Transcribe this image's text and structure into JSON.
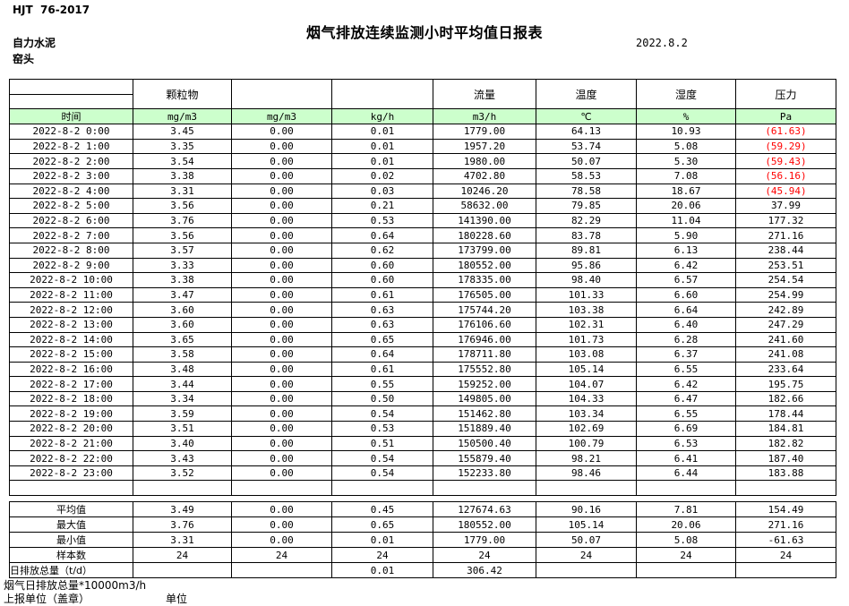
{
  "page": {
    "doc_code": "HJT  76-2017",
    "title": "烟气排放连续监测小时平均值日报表",
    "date": "2022.8.2",
    "company": "自力水泥",
    "location": "窑头"
  },
  "table": {
    "group_headers": [
      "",
      "颗粒物",
      "",
      "",
      "流量",
      "温度",
      "湿度",
      "压力"
    ],
    "unit_headers": [
      "时间",
      "mg/m3",
      "mg/m3",
      "kg/h",
      "m3/h",
      "℃",
      "%",
      "Pa"
    ],
    "rows": [
      {
        "cells": [
          "2022-8-2 0:00",
          "3.45",
          "0.00",
          "0.01",
          "1779.00",
          "64.13",
          "10.93",
          "(61.63)"
        ]
      },
      {
        "cells": [
          "2022-8-2 1:00",
          "3.35",
          "0.00",
          "0.01",
          "1957.20",
          "53.74",
          "5.08",
          "(59.29)"
        ]
      },
      {
        "cells": [
          "2022-8-2 2:00",
          "3.54",
          "0.00",
          "0.01",
          "1980.00",
          "50.07",
          "5.30",
          "(59.43)"
        ]
      },
      {
        "cells": [
          "2022-8-2 3:00",
          "3.38",
          "0.00",
          "0.02",
          "4702.80",
          "58.53",
          "7.08",
          "(56.16)"
        ]
      },
      {
        "cells": [
          "2022-8-2 4:00",
          "3.31",
          "0.00",
          "0.03",
          "10246.20",
          "78.58",
          "18.67",
          "(45.94)"
        ]
      },
      {
        "cells": [
          "2022-8-2 5:00",
          "3.56",
          "0.00",
          "0.21",
          "58632.00",
          "79.85",
          "20.06",
          "37.99"
        ]
      },
      {
        "cells": [
          "2022-8-2 6:00",
          "3.76",
          "0.00",
          "0.53",
          "141390.00",
          "82.29",
          "11.04",
          "177.32"
        ]
      },
      {
        "cells": [
          "2022-8-2 7:00",
          "3.56",
          "0.00",
          "0.64",
          "180228.60",
          "83.78",
          "5.90",
          "271.16"
        ]
      },
      {
        "cells": [
          "2022-8-2 8:00",
          "3.57",
          "0.00",
          "0.62",
          "173799.00",
          "89.81",
          "6.13",
          "238.44"
        ]
      },
      {
        "cells": [
          "2022-8-2 9:00",
          "3.33",
          "0.00",
          "0.60",
          "180552.00",
          "95.86",
          "6.42",
          "253.51"
        ]
      },
      {
        "cells": [
          "2022-8-2 10:00",
          "3.38",
          "0.00",
          "0.60",
          "178335.00",
          "98.40",
          "6.57",
          "254.54"
        ]
      },
      {
        "cells": [
          "2022-8-2 11:00",
          "3.47",
          "0.00",
          "0.61",
          "176505.00",
          "101.33",
          "6.60",
          "254.99"
        ]
      },
      {
        "cells": [
          "2022-8-2 12:00",
          "3.60",
          "0.00",
          "0.63",
          "175744.20",
          "103.38",
          "6.64",
          "242.89"
        ]
      },
      {
        "cells": [
          "2022-8-2 13:00",
          "3.60",
          "0.00",
          "0.63",
          "176106.60",
          "102.31",
          "6.40",
          "247.29"
        ]
      },
      {
        "cells": [
          "2022-8-2 14:00",
          "3.65",
          "0.00",
          "0.65",
          "176946.00",
          "101.73",
          "6.28",
          "241.60"
        ]
      },
      {
        "cells": [
          "2022-8-2 15:00",
          "3.58",
          "0.00",
          "0.64",
          "178711.80",
          "103.08",
          "6.37",
          "241.08"
        ]
      },
      {
        "cells": [
          "2022-8-2 16:00",
          "3.48",
          "0.00",
          "0.61",
          "175552.80",
          "105.14",
          "6.55",
          "233.64"
        ]
      },
      {
        "cells": [
          "2022-8-2 17:00",
          "3.44",
          "0.00",
          "0.55",
          "159252.00",
          "104.07",
          "6.42",
          "195.75"
        ]
      },
      {
        "cells": [
          "2022-8-2 18:00",
          "3.34",
          "0.00",
          "0.50",
          "149805.00",
          "104.33",
          "6.47",
          "182.66"
        ]
      },
      {
        "cells": [
          "2022-8-2 19:00",
          "3.59",
          "0.00",
          "0.54",
          "151462.80",
          "103.34",
          "6.55",
          "178.44"
        ]
      },
      {
        "cells": [
          "2022-8-2 20:00",
          "3.51",
          "0.00",
          "0.53",
          "151889.40",
          "102.69",
          "6.69",
          "184.81"
        ]
      },
      {
        "cells": [
          "2022-8-2 21:00",
          "3.40",
          "0.00",
          "0.51",
          "150500.40",
          "100.79",
          "6.53",
          "182.82"
        ]
      },
      {
        "cells": [
          "2022-8-2 22:00",
          "3.43",
          "0.00",
          "0.54",
          "155879.40",
          "98.21",
          "6.41",
          "187.40"
        ]
      },
      {
        "cells": [
          "2022-8-2 23:00",
          "3.52",
          "0.00",
          "0.54",
          "152233.80",
          "98.46",
          "6.44",
          "183.88"
        ]
      }
    ]
  },
  "summary": {
    "rows": [
      {
        "label": "平均值",
        "align": "center",
        "cells": [
          "3.49",
          "0.00",
          "0.45",
          "127674.63",
          "90.16",
          "7.81",
          "154.49"
        ]
      },
      {
        "label": "最大值",
        "align": "center",
        "cells": [
          "3.76",
          "0.00",
          "0.65",
          "180552.00",
          "105.14",
          "20.06",
          "271.16"
        ]
      },
      {
        "label": "最小值",
        "align": "center",
        "cells": [
          "3.31",
          "0.00",
          "0.01",
          "1779.00",
          "50.07",
          "5.08",
          "-61.63"
        ]
      },
      {
        "label": "样本数",
        "align": "center",
        "cells": [
          "24",
          "24",
          "24",
          "24",
          "24",
          "24",
          "24"
        ]
      },
      {
        "label": "日排放总量（t/d）",
        "align": "left",
        "cells": [
          "",
          "",
          "0.01",
          "306.42",
          "",
          "",
          ""
        ]
      }
    ]
  },
  "footer": {
    "note": "烟气日排放总量*10000m3/h",
    "sign_label": "上报单位（盖章）",
    "unit_label": "单位"
  },
  "colors": {
    "header_green": "#ccffcc",
    "negative_red": "#ff0000"
  }
}
